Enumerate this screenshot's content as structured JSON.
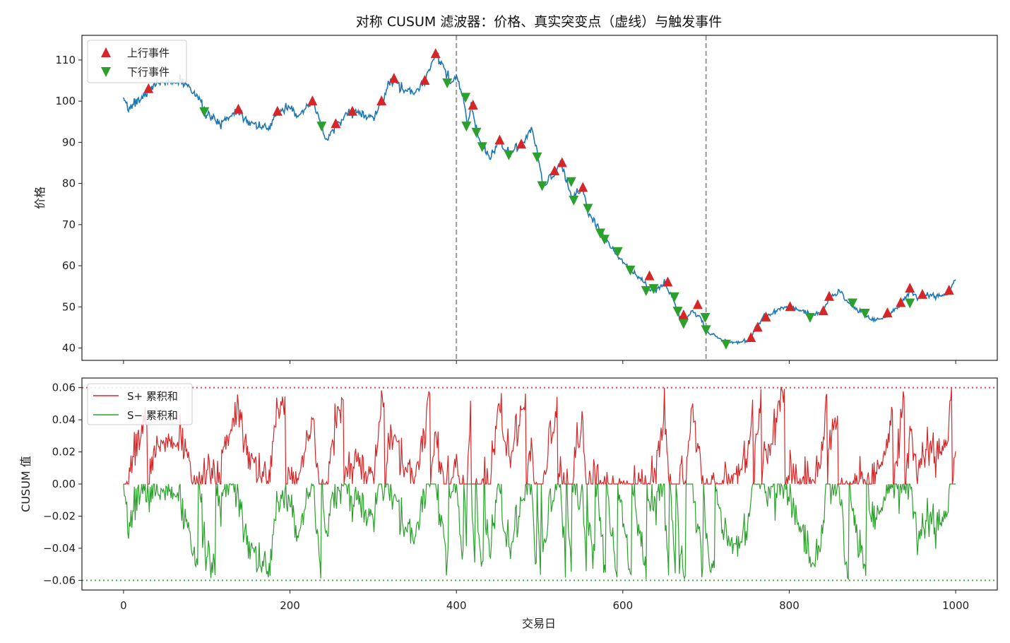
{
  "figure": {
    "title": "对称 CUSUM 滤波器：价格、真实突变点（虚线）与触发事件",
    "xlabel": "交易日",
    "colors": {
      "price": "#1f77b4",
      "up": "#d62728",
      "down": "#2ca02c",
      "changepoint": "#999999",
      "frame": "#222222"
    }
  },
  "chart_data": [
    {
      "type": "line",
      "panel": "price",
      "ylabel": "价格",
      "xlim": [
        -50,
        1050
      ],
      "ylim": [
        37,
        116
      ],
      "xticks": [
        0,
        200,
        400,
        600,
        800,
        1000
      ],
      "yticks": [
        40,
        50,
        60,
        70,
        80,
        90,
        100,
        110
      ],
      "ytick_labels": [
        "40",
        "50",
        "60",
        "70",
        "80",
        "90",
        "100",
        "110"
      ],
      "changepoints": [
        400,
        700
      ],
      "legend": {
        "placement": "upper-left",
        "up_label": "上行事件",
        "down_label": "下行事件"
      },
      "price_anchors": [
        [
          0,
          100
        ],
        [
          5,
          98
        ],
        [
          15,
          100
        ],
        [
          25,
          101
        ],
        [
          30,
          103
        ],
        [
          40,
          104
        ],
        [
          50,
          105
        ],
        [
          60,
          104
        ],
        [
          70,
          105
        ],
        [
          80,
          103
        ],
        [
          90,
          101
        ],
        [
          95,
          98
        ],
        [
          105,
          96
        ],
        [
          115,
          94.5
        ],
        [
          125,
          96
        ],
        [
          138,
          98
        ],
        [
          150,
          95
        ],
        [
          165,
          94
        ],
        [
          175,
          93
        ],
        [
          185,
          97.5
        ],
        [
          200,
          99
        ],
        [
          212,
          96
        ],
        [
          227,
          100
        ],
        [
          238,
          94
        ],
        [
          243,
          90
        ],
        [
          255,
          94.5
        ],
        [
          262,
          95
        ],
        [
          272,
          97.5
        ],
        [
          285,
          97
        ],
        [
          300,
          95.5
        ],
        [
          310,
          100
        ],
        [
          322,
          105
        ],
        [
          335,
          103
        ],
        [
          350,
          102
        ],
        [
          362,
          105
        ],
        [
          375,
          112
        ],
        [
          385,
          108
        ],
        [
          393,
          104
        ],
        [
          400,
          106
        ],
        [
          408,
          101
        ],
        [
          413,
          94
        ],
        [
          418,
          99
        ],
        [
          425,
          92
        ],
        [
          432,
          89
        ],
        [
          440,
          86
        ],
        [
          452,
          90.5
        ],
        [
          464,
          87
        ],
        [
          475,
          89
        ],
        [
          480,
          90
        ],
        [
          490,
          93
        ],
        [
          498,
          87
        ],
        [
          504,
          79
        ],
        [
          515,
          82
        ],
        [
          520,
          83
        ],
        [
          525,
          85
        ],
        [
          533,
          80
        ],
        [
          540,
          76
        ],
        [
          545,
          78
        ],
        [
          552,
          79
        ],
        [
          558,
          73
        ],
        [
          568,
          70
        ],
        [
          575,
          68
        ],
        [
          580,
          66
        ],
        [
          590,
          63.5
        ],
        [
          600,
          61
        ],
        [
          610,
          59
        ],
        [
          622,
          57
        ],
        [
          632,
          54
        ],
        [
          640,
          54
        ],
        [
          650,
          56
        ],
        [
          660,
          52
        ],
        [
          668,
          48
        ],
        [
          675,
          47
        ],
        [
          683,
          49
        ],
        [
          690,
          48
        ],
        [
          695,
          47
        ],
        [
          700,
          44
        ],
        [
          710,
          43
        ],
        [
          720,
          42
        ],
        [
          730,
          41.5
        ],
        [
          740,
          41.5
        ],
        [
          752,
          42
        ],
        [
          760,
          45
        ],
        [
          770,
          48
        ],
        [
          780,
          48
        ],
        [
          790,
          50
        ],
        [
          800,
          50
        ],
        [
          815,
          49
        ],
        [
          828,
          48
        ],
        [
          840,
          49
        ],
        [
          848,
          52
        ],
        [
          860,
          54
        ],
        [
          870,
          51
        ],
        [
          885,
          49
        ],
        [
          900,
          47
        ],
        [
          910,
          47
        ],
        [
          920,
          48
        ],
        [
          935,
          51
        ],
        [
          945,
          54
        ],
        [
          955,
          52
        ],
        [
          965,
          53
        ],
        [
          980,
          52.5
        ],
        [
          990,
          53
        ],
        [
          1000,
          57
        ]
      ],
      "up_events": [
        [
          30,
          103
        ],
        [
          138,
          98
        ],
        [
          185,
          97.5
        ],
        [
          227,
          100
        ],
        [
          255,
          94.5
        ],
        [
          275,
          97.5
        ],
        [
          310,
          100
        ],
        [
          325,
          105.5
        ],
        [
          362,
          105
        ],
        [
          375,
          111.5
        ],
        [
          420,
          99
        ],
        [
          452,
          90.5
        ],
        [
          478,
          89.5
        ],
        [
          518,
          83
        ],
        [
          527,
          85
        ],
        [
          552,
          79
        ],
        [
          632,
          57.5
        ],
        [
          654,
          56
        ],
        [
          673,
          48
        ],
        [
          690,
          50.5
        ],
        [
          754,
          42.5
        ],
        [
          762,
          45
        ],
        [
          772,
          47.5
        ],
        [
          801,
          50
        ],
        [
          841,
          49
        ],
        [
          848,
          52.5
        ],
        [
          918,
          48.5
        ],
        [
          934,
          51
        ],
        [
          945,
          54.5
        ],
        [
          960,
          53
        ],
        [
          992,
          54
        ]
      ],
      "down_events": [
        [
          97,
          97.5
        ],
        [
          238,
          94
        ],
        [
          389,
          104.5
        ],
        [
          411,
          101
        ],
        [
          412,
          94
        ],
        [
          424,
          92.5
        ],
        [
          431,
          89
        ],
        [
          463,
          87
        ],
        [
          497,
          86.5
        ],
        [
          503,
          79.5
        ],
        [
          538,
          80.5
        ],
        [
          541,
          76
        ],
        [
          558,
          74
        ],
        [
          573,
          68
        ],
        [
          578,
          66.5
        ],
        [
          594,
          63.5
        ],
        [
          609,
          59
        ],
        [
          628,
          54
        ],
        [
          637,
          54.5
        ],
        [
          662,
          52.5
        ],
        [
          666,
          49
        ],
        [
          673,
          46
        ],
        [
          699,
          47.5
        ],
        [
          700,
          44.5
        ],
        [
          724,
          41
        ],
        [
          825,
          47.5
        ],
        [
          876,
          51
        ],
        [
          891,
          48.5
        ],
        [
          945,
          51
        ]
      ]
    },
    {
      "type": "line",
      "panel": "cusum",
      "ylabel": "CUSUM 值",
      "xlim": [
        -50,
        1050
      ],
      "ylim": [
        -0.066,
        0.066
      ],
      "threshold": 0.06,
      "xticks": [
        0,
        200,
        400,
        600,
        800,
        1000
      ],
      "xtick_labels": [
        "0",
        "200",
        "400",
        "600",
        "800",
        "1000"
      ],
      "yticks": [
        -0.06,
        -0.04,
        -0.02,
        0.0,
        0.02,
        0.04,
        0.06
      ],
      "ytick_labels": [
        "−0.06",
        "−0.04",
        "−0.02",
        "0.00",
        "0.02",
        "0.04",
        "0.06"
      ],
      "legend": {
        "placement": "upper-left",
        "splus_label": "S+ 累积和",
        "sminus_label": "S− 累积和"
      },
      "seed": 7,
      "n_days": 1000
    }
  ]
}
